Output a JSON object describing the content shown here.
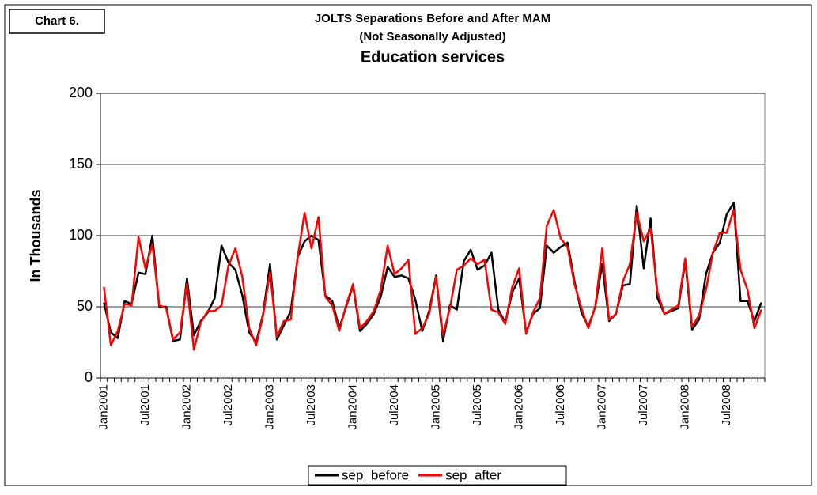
{
  "chart_data": {
    "type": "line",
    "label": "Chart 6.",
    "title": "JOLTS Separations Before and After MAM",
    "subtitle": "(Not Seasonally Adjusted)",
    "chart_title": "Education services",
    "y_label": "In Thousands",
    "categories": [
      "Jan2001",
      null,
      null,
      null,
      null,
      null,
      "Jul2001",
      null,
      null,
      null,
      null,
      null,
      "Jan2002",
      null,
      null,
      null,
      null,
      null,
      "Jul2002",
      null,
      null,
      null,
      null,
      null,
      "Jan2003",
      null,
      null,
      null,
      null,
      null,
      "Jul2003",
      null,
      null,
      null,
      null,
      null,
      "Jan2004",
      null,
      null,
      null,
      null,
      null,
      "Jul2004",
      null,
      null,
      null,
      null,
      null,
      "Jan2005",
      null,
      null,
      null,
      null,
      null,
      "Jul2005",
      null,
      null,
      null,
      null,
      null,
      "Jan2006",
      null,
      null,
      null,
      null,
      null,
      "Jul2006",
      null,
      null,
      null,
      null,
      null,
      "Jan2007",
      null,
      null,
      null,
      null,
      null,
      "Jul2007",
      null,
      null,
      null,
      null,
      null,
      "Jan2008",
      null,
      null,
      null,
      null,
      null,
      "Jul2008",
      null,
      null,
      null,
      null,
      null
    ],
    "series": [
      {
        "name": "sep_before",
        "color": "#000000",
        "values": [
          53,
          32,
          28,
          54,
          52,
          74,
          73,
          100,
          50,
          50,
          26,
          27,
          70,
          30,
          40,
          46,
          56,
          93,
          81,
          76,
          58,
          32,
          25,
          45,
          80,
          27,
          37,
          47,
          85,
          96,
          100,
          97,
          58,
          54,
          35,
          50,
          65,
          33,
          38,
          45,
          57,
          78,
          71,
          72,
          70,
          55,
          33,
          47,
          72,
          26,
          51,
          48,
          82,
          90,
          76,
          79,
          88,
          48,
          39,
          60,
          70,
          32,
          45,
          49,
          93,
          88,
          92,
          95,
          68,
          46,
          36,
          50,
          80,
          40,
          45,
          65,
          66,
          121,
          77,
          112,
          56,
          45,
          47,
          49,
          82,
          34,
          41,
          73,
          88,
          95,
          115,
          123,
          54,
          54,
          40,
          53
        ]
      },
      {
        "name": "sep_after",
        "color": "#ff0000",
        "values": [
          64,
          23,
          33,
          52,
          51,
          99,
          77,
          94,
          51,
          49,
          27,
          32,
          66,
          20,
          39,
          47,
          47,
          51,
          79,
          91,
          71,
          35,
          23,
          44,
          74,
          29,
          40,
          41,
          85,
          116,
          91,
          113,
          57,
          51,
          33,
          51,
          66,
          35,
          40,
          47,
          62,
          93,
          73,
          77,
          83,
          31,
          35,
          45,
          71,
          30,
          49,
          76,
          79,
          84,
          80,
          83,
          48,
          46,
          38,
          64,
          77,
          31,
          46,
          56,
          107,
          118,
          98,
          92,
          66,
          49,
          35,
          50,
          91,
          41,
          45,
          68,
          80,
          116,
          96,
          105,
          60,
          45,
          48,
          51,
          84,
          36,
          44,
          62,
          88,
          102,
          102,
          118,
          76,
          62,
          35,
          48
        ]
      }
    ],
    "ylim": [
      0,
      200
    ],
    "yticks": [
      0,
      50,
      100,
      150,
      200
    ],
    "grid": true,
    "legend": "bottom"
  }
}
